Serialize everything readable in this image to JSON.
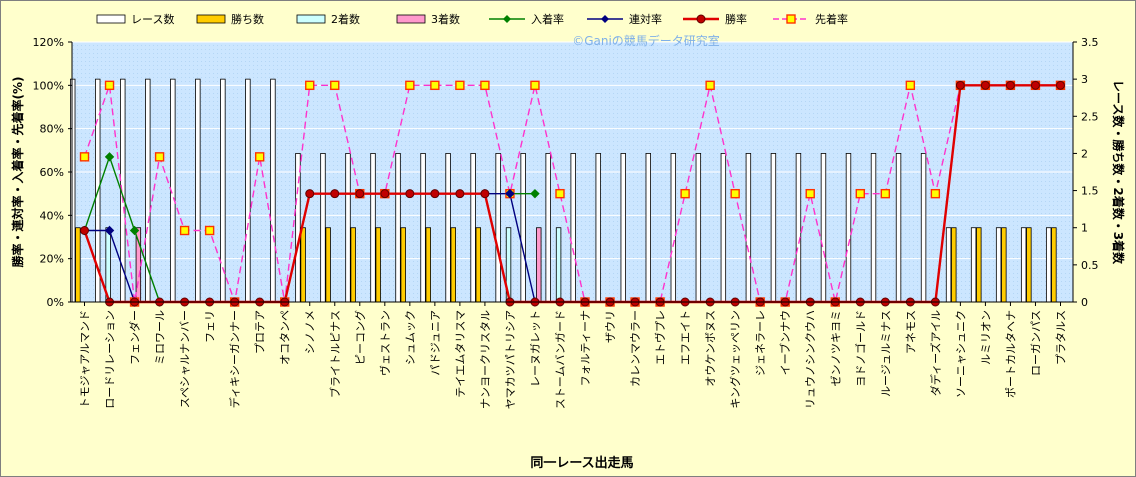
{
  "chart_data": {
    "type": "bar",
    "title": "",
    "watermark": "©Ganiの競馬データ研究室",
    "xlabel": "同一レース出走馬",
    "ylabel_left": "勝率・連対率・入着率・先着率(%)",
    "ylabel_right": "レース数・勝ち数・2着数・3着数",
    "ylim_left": [
      0,
      120
    ],
    "ylim_right": [
      0,
      3.5
    ],
    "left_ticks": [
      "0%",
      "20%",
      "40%",
      "60%",
      "80%",
      "100%",
      "120%"
    ],
    "right_ticks": [
      "0",
      "0.5",
      "1",
      "1.5",
      "2",
      "2.5",
      "3",
      "3.5"
    ],
    "grid": true,
    "legend_position": "top",
    "categories": [
      "トモジャアルマンド",
      "ロードリレーション",
      "フェンダー",
      "ミロワール",
      "スペシャルナンバー",
      "フェリ",
      "ディキシーガンナー",
      "プロテア",
      "オコタンペ",
      "シノノメ",
      "ブライトルピナス",
      "ピーコング",
      "ヴェストラン",
      "シュムック",
      "パドジュニア",
      "テイエムタリスマ",
      "ナンヨークリスタル",
      "ヤマカツパトリシア",
      "レーヌガレット",
      "ストームバンガード",
      "フォルティーナ",
      "ザウリ",
      "カレンマウラー",
      "エトヴプレ",
      "エフエイト",
      "オウケンボヌス",
      "キングツェッペリン",
      "ジェネラーレ",
      "イーブンナウ",
      "リュウノシンクウハ",
      "ゼンノツキヨミ",
      "ヨドノゴールド",
      "ルージュルミナス",
      "アネモス",
      "ダディーズアイル",
      "ソーニャシュニク",
      "ルミリオン",
      "ポートカルタヘナ",
      "ローガンパス",
      "プラタルス"
    ],
    "series": [
      {
        "name": "レース数",
        "kind": "bar",
        "axis": "right",
        "color": "#ffffff",
        "values": [
          3,
          3,
          3,
          3,
          3,
          3,
          3,
          3,
          3,
          2,
          2,
          2,
          2,
          2,
          2,
          2,
          2,
          2,
          2,
          2,
          2,
          2,
          2,
          2,
          2,
          2,
          2,
          2,
          2,
          2,
          2,
          2,
          2,
          2,
          2,
          1,
          1,
          1,
          1,
          1
        ]
      },
      {
        "name": "勝ち数",
        "kind": "bar",
        "axis": "right",
        "color": "#ffcc00",
        "values": [
          1,
          0,
          0,
          0,
          0,
          0,
          0,
          0,
          0,
          1,
          1,
          1,
          1,
          1,
          1,
          1,
          1,
          0,
          0,
          0,
          0,
          0,
          0,
          0,
          0,
          0,
          0,
          0,
          0,
          0,
          0,
          0,
          0,
          0,
          0,
          1,
          1,
          1,
          1,
          1
        ]
      },
      {
        "name": "2着数",
        "kind": "bar",
        "axis": "right",
        "color": "#ccffff",
        "values": [
          0,
          1,
          0,
          0,
          0,
          0,
          0,
          0,
          0,
          0,
          0,
          0,
          0,
          0,
          0,
          0,
          0,
          1,
          0,
          1,
          0,
          0,
          0,
          0,
          0,
          0,
          0,
          0,
          0,
          0,
          0,
          0,
          0,
          0,
          0,
          0,
          0,
          0,
          0,
          0
        ]
      },
      {
        "name": "3着数",
        "kind": "bar",
        "axis": "right",
        "color": "#ff99cc",
        "values": [
          0,
          0,
          1,
          0,
          0,
          0,
          0,
          0,
          0,
          0,
          0,
          0,
          0,
          0,
          0,
          0,
          0,
          0,
          1,
          0,
          0,
          0,
          0,
          0,
          0,
          0,
          0,
          0,
          0,
          0,
          0,
          0,
          0,
          0,
          0,
          0,
          0,
          0,
          0,
          0
        ]
      },
      {
        "name": "入着率",
        "kind": "line",
        "axis": "left",
        "color": "#008000",
        "marker": "diamond",
        "dash": false,
        "values": [
          33,
          67,
          33,
          0,
          null,
          null,
          null,
          null,
          null,
          null,
          null,
          null,
          null,
          null,
          null,
          null,
          null,
          50,
          50,
          null,
          null,
          null,
          null,
          null,
          null,
          null,
          null,
          null,
          null,
          null,
          null,
          null,
          null,
          null,
          null,
          null,
          null,
          null,
          null,
          null
        ]
      },
      {
        "name": "連対率",
        "kind": "line",
        "axis": "left",
        "color": "#000080",
        "marker": "diamond",
        "dash": false,
        "values": [
          33,
          33,
          0,
          null,
          null,
          null,
          null,
          null,
          null,
          null,
          null,
          null,
          null,
          null,
          null,
          null,
          50,
          50,
          0,
          null,
          null,
          null,
          null,
          null,
          null,
          null,
          null,
          null,
          null,
          null,
          null,
          null,
          null,
          null,
          null,
          null,
          null,
          null,
          null,
          null
        ]
      },
      {
        "name": "勝率",
        "kind": "line",
        "axis": "left",
        "color": "#e00000",
        "marker": "circle",
        "dash": false,
        "values": [
          33,
          0,
          0,
          0,
          0,
          0,
          0,
          0,
          0,
          50,
          50,
          50,
          50,
          50,
          50,
          50,
          50,
          0,
          0,
          0,
          0,
          0,
          0,
          0,
          0,
          0,
          0,
          0,
          0,
          0,
          0,
          0,
          0,
          0,
          0,
          100,
          100,
          100,
          100,
          100
        ]
      },
      {
        "name": "先着率",
        "kind": "line",
        "axis": "left",
        "color": "#ff33cc",
        "marker": "square",
        "dash": true,
        "values": [
          67,
          100,
          0,
          67,
          33,
          33,
          0,
          67,
          0,
          100,
          100,
          50,
          50,
          100,
          100,
          100,
          100,
          50,
          100,
          50,
          0,
          0,
          0,
          0,
          50,
          100,
          50,
          0,
          0,
          50,
          0,
          50,
          50,
          100,
          50,
          100,
          100,
          100,
          100,
          100
        ]
      }
    ]
  }
}
